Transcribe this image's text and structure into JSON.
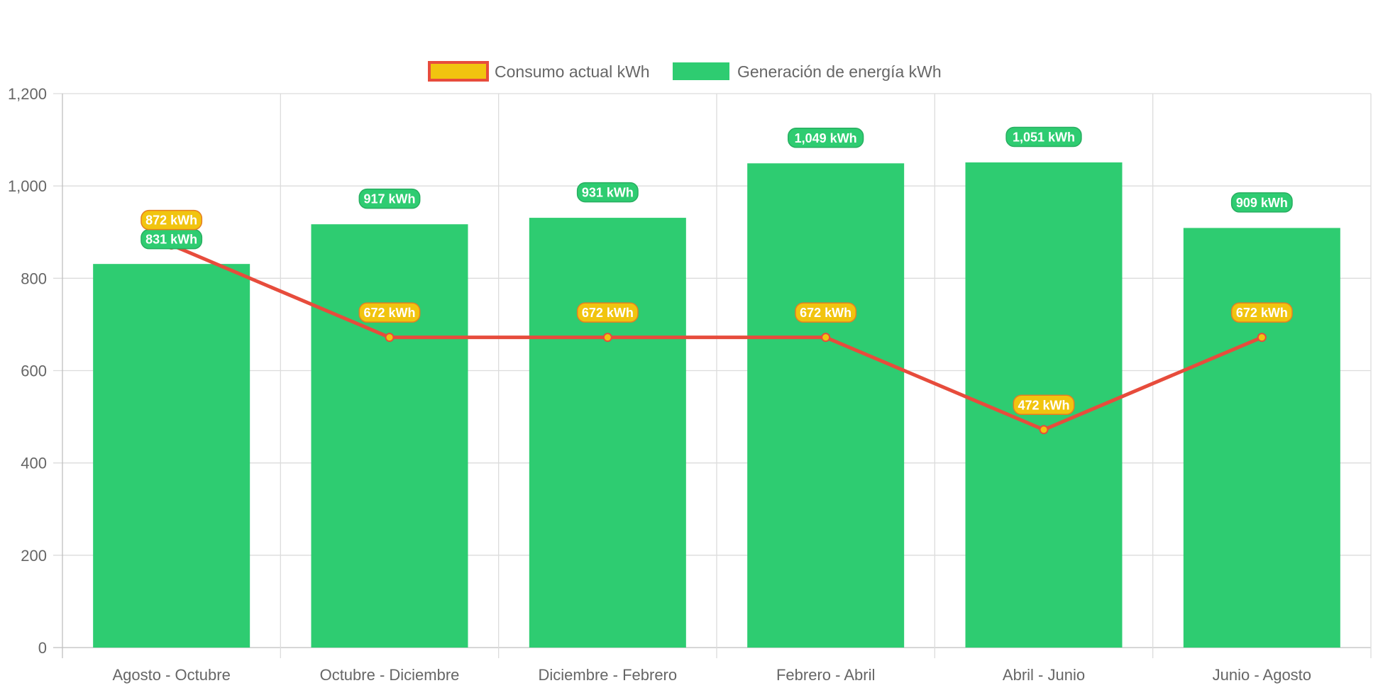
{
  "chart_data": {
    "type": "bar",
    "title": "",
    "xlabel": "",
    "ylabel": "",
    "ylim": [
      0,
      1200
    ],
    "yticks": [
      0,
      200,
      400,
      600,
      800,
      1000,
      1200
    ],
    "ytick_labels": [
      "0",
      "200",
      "400",
      "600",
      "800",
      "1,000",
      "1,200"
    ],
    "grid": true,
    "legend_position": "top",
    "categories": [
      "Agosto - Octubre",
      "Octubre - Diciembre",
      "Diciembre - Febrero",
      "Febrero - Abril",
      "Abril - Junio",
      "Junio - Agosto"
    ],
    "series": [
      {
        "name": "Consumo actual kWh",
        "type": "line",
        "values": [
          872,
          672,
          672,
          672,
          472,
          672
        ],
        "labels": [
          "872 kWh",
          "672 kWh",
          "672 kWh",
          "672 kWh",
          "472 kWh",
          "672 kWh"
        ],
        "color": "#e74c3c",
        "fill": "#f1c40f"
      },
      {
        "name": "Generación de energía kWh",
        "type": "bar",
        "values": [
          831,
          917,
          931,
          1049,
          1051,
          909
        ],
        "labels": [
          "831 kWh",
          "917 kWh",
          "931 kWh",
          "1,049 kWh",
          "1,051 kWh",
          "909 kWh"
        ],
        "color": "#2ecc71",
        "border": "#27ae60"
      }
    ]
  }
}
